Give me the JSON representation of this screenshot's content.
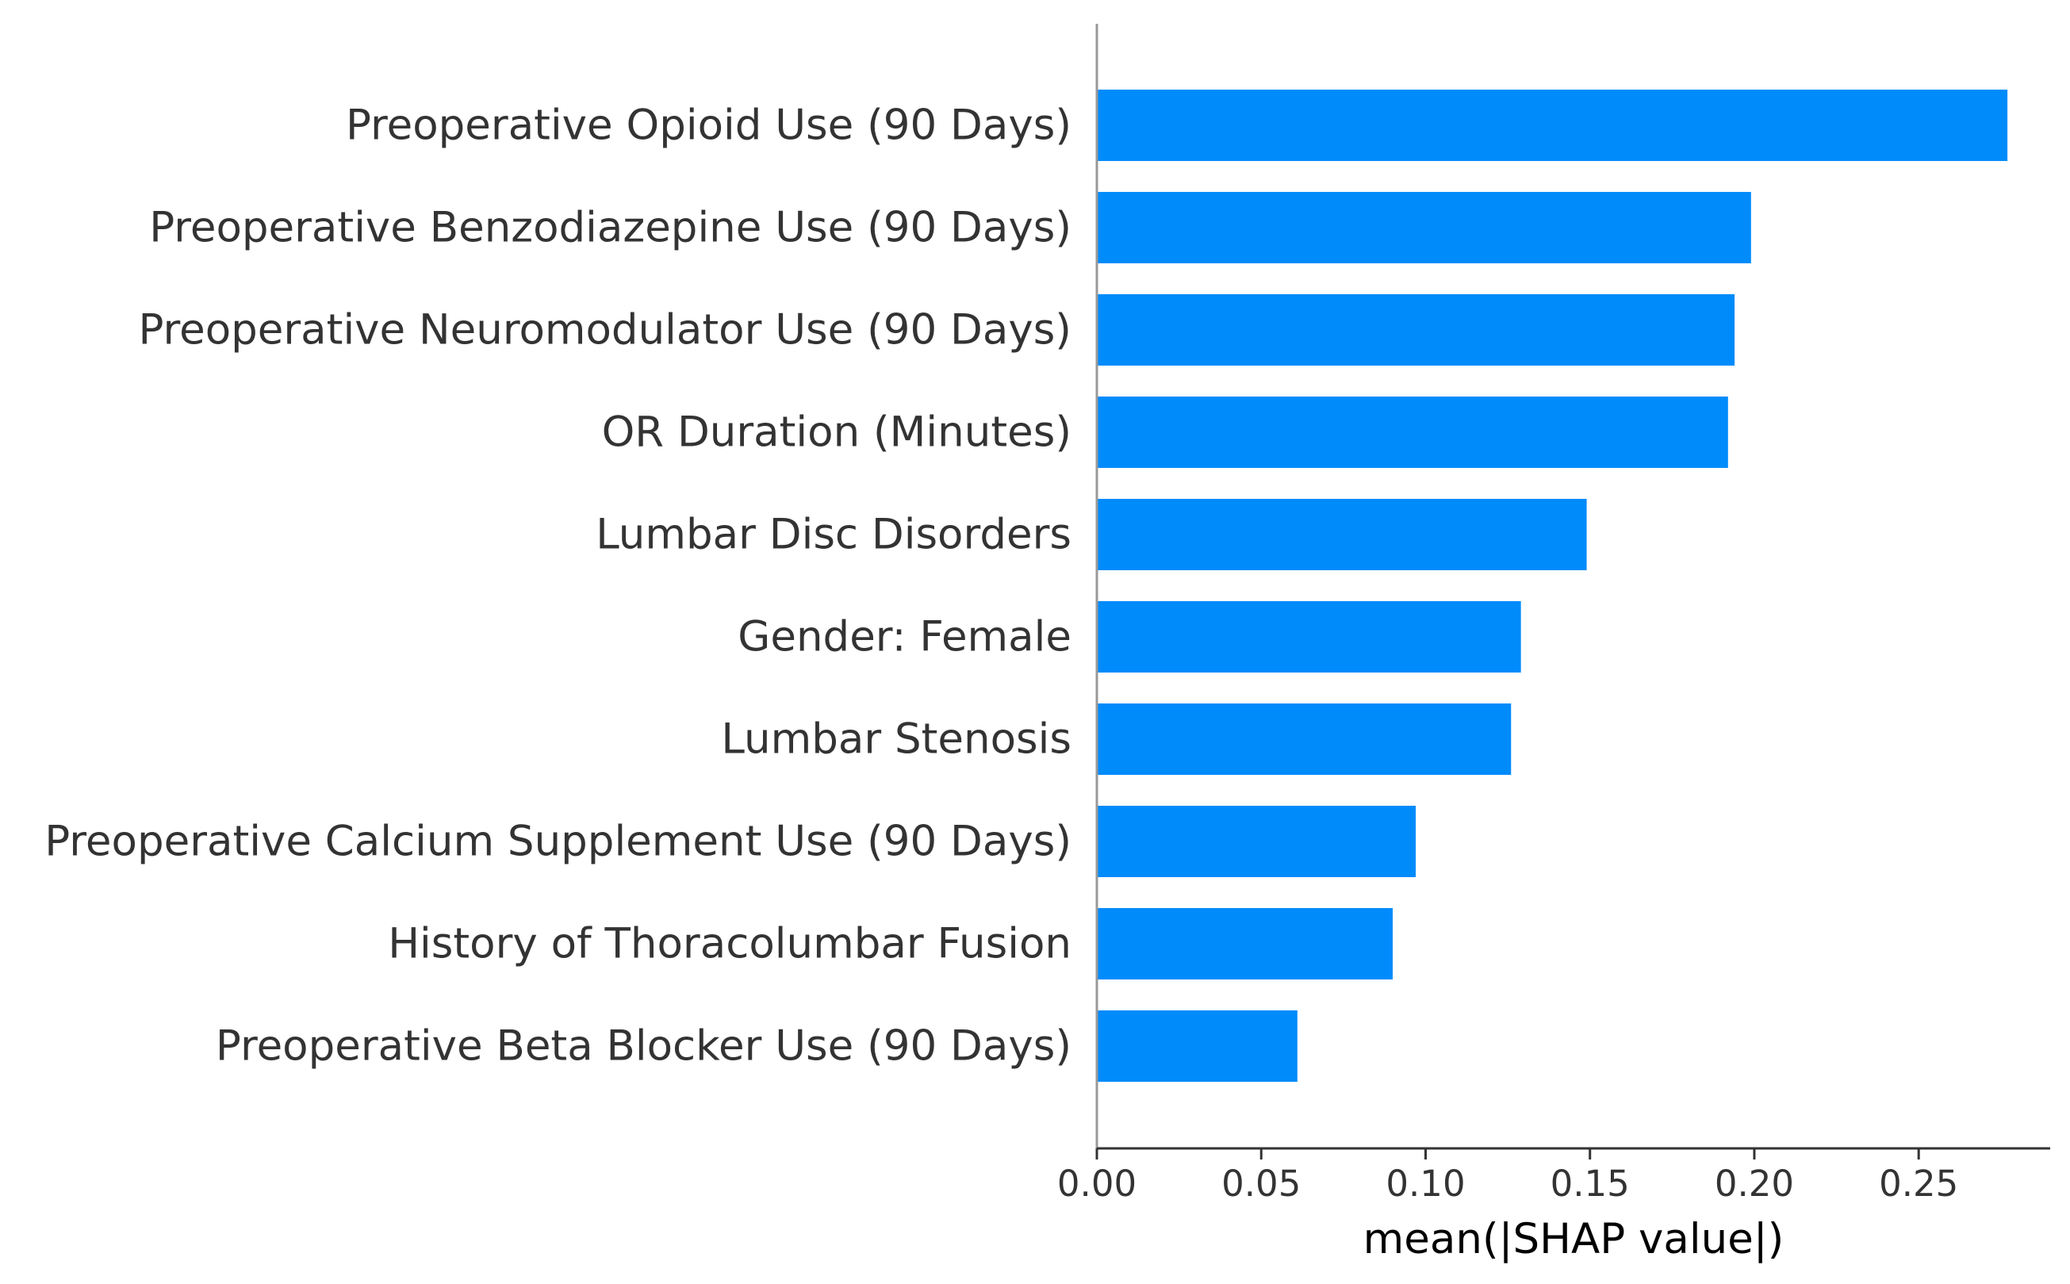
{
  "chart_data": {
    "type": "bar",
    "orientation": "horizontal",
    "categories": [
      "Preoperative Opioid Use (90 Days)",
      "Preoperative Benzodiazepine Use (90 Days)",
      "Preoperative Neuromodulator Use (90 Days)",
      "OR Duration (Minutes)",
      "Lumbar Disc Disorders",
      "Gender: Female",
      "Lumbar Stenosis",
      "Preoperative Calcium Supplement Use (90 Days)",
      "History of Thoracolumbar Fusion",
      "Preoperative Beta Blocker Use (90 Days)"
    ],
    "values": [
      0.277,
      0.199,
      0.194,
      0.192,
      0.149,
      0.129,
      0.126,
      0.097,
      0.09,
      0.061
    ],
    "xlabel": "mean(|SHAP value|)",
    "ylabel": "",
    "title": "",
    "xlim": [
      0,
      0.29
    ],
    "xticks": [
      0.0,
      0.05,
      0.1,
      0.15,
      0.2,
      0.25
    ],
    "xtick_labels": [
      "0.00",
      "0.05",
      "0.10",
      "0.15",
      "0.20",
      "0.25"
    ],
    "grid": false,
    "legend": "none",
    "bar_color": "#008bfb",
    "axis_color": "#333333"
  }
}
